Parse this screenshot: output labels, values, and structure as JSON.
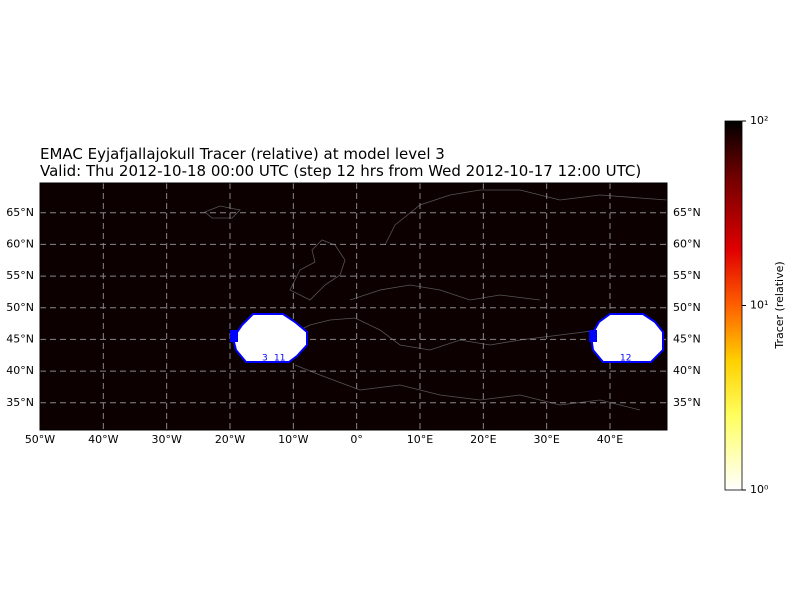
{
  "title": "EMAC Eyjafjallajokull Tracer (relative) at model level 3",
  "subtitle": "Valid: Thu 2012-10-18 00:00 UTC (step 12 hrs from Wed 2012-10-17 12:00 UTC)",
  "map": {
    "lon_range": [
      -50,
      49
    ],
    "lat_range": [
      30.7,
      69.7
    ],
    "lon_ticks": [
      {
        "value": -50,
        "label": "50°W"
      },
      {
        "value": -40,
        "label": "40°W"
      },
      {
        "value": -30,
        "label": "30°W"
      },
      {
        "value": -20,
        "label": "20°W"
      },
      {
        "value": -10,
        "label": "10°W"
      },
      {
        "value": 0,
        "label": "0°"
      },
      {
        "value": 10,
        "label": "10°E"
      },
      {
        "value": 20,
        "label": "20°E"
      },
      {
        "value": 30,
        "label": "30°E"
      },
      {
        "value": 40,
        "label": "40°E"
      }
    ],
    "lat_ticks": [
      {
        "value": 35,
        "label": "35°N"
      },
      {
        "value": 40,
        "label": "40°N"
      },
      {
        "value": 45,
        "label": "45°N"
      },
      {
        "value": 50,
        "label": "50°N"
      },
      {
        "value": 55,
        "label": "55°N"
      },
      {
        "value": 60,
        "label": "60°N"
      },
      {
        "value": 65,
        "label": "65°N"
      }
    ],
    "grid": true,
    "background": "#0d0000"
  },
  "contour_labels": [
    "3",
    "11",
    "12"
  ],
  "colorbar": {
    "label": "Tracer (relative)",
    "scale": "log",
    "range": [
      1,
      100
    ],
    "ticks": [
      {
        "value": 1,
        "label": "10⁰"
      },
      {
        "value": 10,
        "label": "10¹"
      },
      {
        "value": 100,
        "label": "10²"
      }
    ]
  }
}
